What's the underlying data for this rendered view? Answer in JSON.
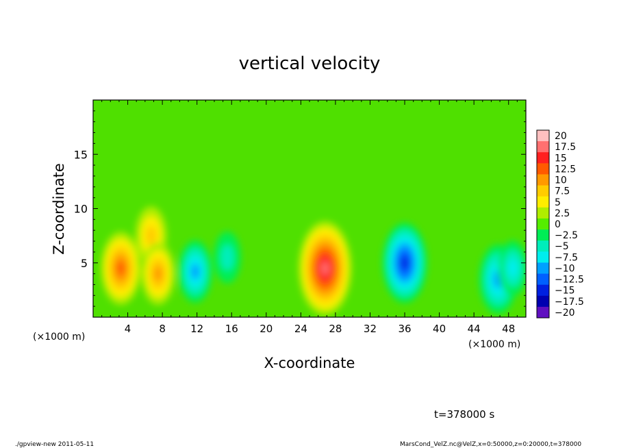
{
  "chart_data": {
    "type": "heatmap",
    "title": "vertical velocity",
    "xlabel": "X-coordinate",
    "ylabel": "Z-coordinate",
    "x_unit_label": "(×1000 m)",
    "z_unit_label": "(×1000 m)",
    "xlim": [
      0,
      50
    ],
    "ylim": [
      0,
      20
    ],
    "x_ticks": [
      "4",
      "8",
      "12",
      "16",
      "20",
      "24",
      "28",
      "32",
      "36",
      "40",
      "44",
      "48"
    ],
    "y_ticks": [
      "5",
      "10",
      "15"
    ],
    "colorbar": {
      "labels": [
        "20",
        "17.5",
        "15",
        "12.5",
        "10",
        "7.5",
        "5",
        "2.5",
        "0",
        "−2.5",
        "−5",
        "−7.5",
        "−10",
        "−12.5",
        "−15",
        "−17.5",
        "−20"
      ],
      "colors": [
        "#ffc0c0",
        "#ff7070",
        "#ff2020",
        "#ff5a00",
        "#ff9900",
        "#ffcc00",
        "#ffee00",
        "#b0ee00",
        "#55ee00",
        "#00ee55",
        "#00eebb",
        "#00eeee",
        "#00a0ff",
        "#0060ff",
        "#0020e0",
        "#0000b0",
        "#6010c0"
      ]
    },
    "features": [
      {
        "x": 3.2,
        "z": 4.5,
        "w": 12
      },
      {
        "x": 6.7,
        "z": 7.5,
        "w": 8
      },
      {
        "x": 7.5,
        "z": 4.0,
        "w": 9
      },
      {
        "x": 11.8,
        "z": 4.2,
        "w": -9
      },
      {
        "x": 15.5,
        "z": 5.5,
        "w": -6
      },
      {
        "x": 26.8,
        "z": 4.5,
        "w": 18
      },
      {
        "x": 36.0,
        "z": 5.0,
        "w": -14
      },
      {
        "x": 46.8,
        "z": 3.5,
        "w": -11
      },
      {
        "x": 48.5,
        "z": 4.5,
        "w": -7
      }
    ],
    "time_label": "t=378000 s"
  },
  "footer": {
    "left": "./gpview-new   2011-05-11",
    "right": "MarsCond_VelZ.nc@VelZ,x=0:50000,z=0:20000,t=378000"
  }
}
